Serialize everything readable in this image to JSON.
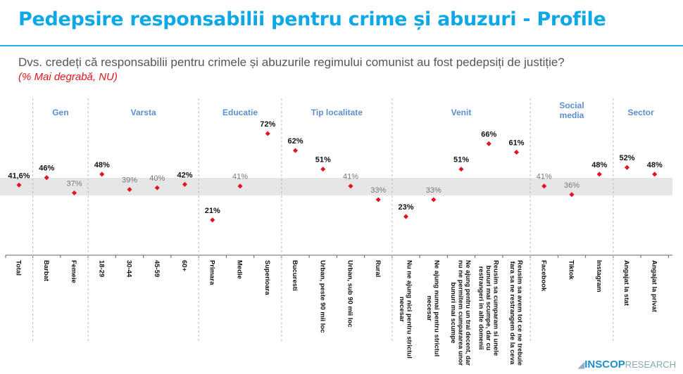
{
  "header": {
    "title": "Pedepsire responsabilii pentru crime și abuzuri - Profile",
    "question": "Dvs. credeți că responsabilii pentru crimele și abuzurile regimului comunist au fost pedepsiți de justiție?",
    "subtitle": "(% Mai degrabă, NU)"
  },
  "logo": {
    "brand": "INSCOP",
    "suffix": "RESEARCH"
  },
  "chart_data": {
    "type": "scatter",
    "title": "Pedepsire responsabilii pentru crime și abuzuri - Profile",
    "reference_value": 41.6,
    "reference_label": "41,6%",
    "colors": {
      "marker": "#e3141b",
      "group_label": "#5b8fd0",
      "band": "#e6e6e6",
      "label_dark": "#111111",
      "label_muted": "#777777"
    },
    "groups": [
      {
        "name": "",
        "categories": [
          "Total"
        ],
        "values": [
          41.6
        ],
        "labels": [
          "41,6%"
        ]
      },
      {
        "name": "Gen",
        "categories": [
          "Barbat",
          "Femeie"
        ],
        "values": [
          46,
          37
        ],
        "labels": [
          "46%",
          "37%"
        ]
      },
      {
        "name": "Varsta",
        "categories": [
          "18-29",
          "30-44",
          "45-59",
          "60+"
        ],
        "values": [
          48,
          39,
          40,
          42
        ],
        "labels": [
          "48%",
          "39%",
          "40%",
          "42%"
        ]
      },
      {
        "name": "Educatie",
        "categories": [
          "Primara",
          "Medie",
          "Superioara"
        ],
        "values": [
          21,
          41,
          72
        ],
        "labels": [
          "21%",
          "41%",
          "72%"
        ]
      },
      {
        "name": "Tip localitate",
        "categories": [
          "Bucuresti",
          "Urban, peste 90 mii loc",
          "Urban, sub 90 mii loc",
          "Rural"
        ],
        "values": [
          62,
          51,
          41,
          33
        ],
        "labels": [
          "62%",
          "51%",
          "41%",
          "33%"
        ]
      },
      {
        "name": "Venit",
        "categories": [
          "Nu ne ajung nici pentru strictul necesar",
          "Ne ajung numai pentru strictul necesar",
          "Ne ajung pentru un trai decent, dar nu ne permitem cumpararea unor bunuri mai scumpe",
          "Reusim sa cumparam si unele bunuri mai scumpe, dar cu restrangeri in alte domenii",
          "Reusim sa avem tot ce ne trebuie fara sa ne restrangem de la ceva"
        ],
        "category_lines": [
          [
            "Nu ne ajung nici pentru strictul",
            "necesar"
          ],
          [
            "Ne ajung numai pentru strictul",
            "necesar"
          ],
          [
            "Ne ajung pentru un trai decent, dar",
            "nu ne permitem cumpararea unor",
            "bunuri mai scumpe"
          ],
          [
            "Reusim sa cumparam si unele",
            "bunuri mai scumpe, dar cu",
            "restrangeri in alte domenii"
          ],
          [
            "Reusim sa avem tot ce ne trebuie",
            "fara sa ne restrangem de la ceva"
          ]
        ],
        "values": [
          23,
          33,
          51,
          66,
          61
        ],
        "labels": [
          "23%",
          "33%",
          "51%",
          "66%",
          "61%"
        ]
      },
      {
        "name": "Social media",
        "name_lines": [
          "Social",
          "media"
        ],
        "categories": [
          "Facebook",
          "Tiktok",
          "Instagram"
        ],
        "values": [
          41,
          36,
          48
        ],
        "labels": [
          "41%",
          "36%",
          "48%"
        ]
      },
      {
        "name": "Sector",
        "categories": [
          "Angajat la stat",
          "Angajat la privat"
        ],
        "values": [
          52,
          48
        ],
        "labels": [
          "52%",
          "48%"
        ]
      }
    ]
  }
}
